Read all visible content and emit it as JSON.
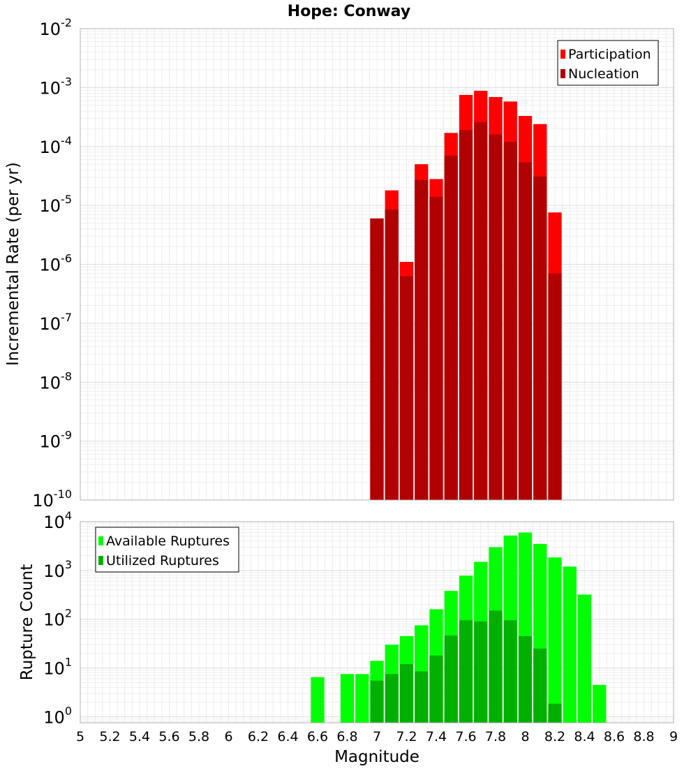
{
  "chart_data": [
    {
      "type": "bar",
      "title": "Hope: Conway",
      "ylabel": "Incremental Rate (per yr)",
      "xlabel": "",
      "x_range": [
        5,
        9
      ],
      "y_scale": "log",
      "ylim": [
        1e-10,
        0.01
      ],
      "grid": true,
      "legend_position": "top-right",
      "y_tick_exponents": [
        -2,
        -3,
        -4,
        -5,
        -6,
        -7,
        -8,
        -9,
        -10
      ],
      "x": [
        7.0,
        7.1,
        7.2,
        7.3,
        7.4,
        7.5,
        7.6,
        7.7,
        7.8,
        7.9,
        8.0,
        8.1,
        8.2
      ],
      "series": [
        {
          "name": "Participation",
          "color": "#ff0000",
          "values": [
            6e-06,
            1.8e-05,
            1.1e-06,
            5e-05,
            2.8e-05,
            0.00017,
            0.00075,
            0.00088,
            0.00069,
            0.00058,
            0.00033,
            0.00024,
            7.6e-06
          ]
        },
        {
          "name": "Nucleation",
          "color": "#b00000",
          "values": [
            6e-06,
            8.5e-06,
            6.3e-07,
            2.7e-05,
            1.4e-05,
            7e-05,
            0.00019,
            0.00026,
            0.00016,
            0.00012,
            5.4e-05,
            3.1e-05,
            7e-07
          ]
        }
      ]
    },
    {
      "type": "bar",
      "title": "",
      "ylabel": "Rupture Count",
      "xlabel": "Magnitude",
      "x_range": [
        5,
        9
      ],
      "y_scale": "log",
      "ylim": [
        0.75,
        10000.0
      ],
      "grid": true,
      "legend_position": "top-left",
      "y_tick_exponents": [
        4,
        3,
        2,
        1,
        0
      ],
      "x_ticks": [
        "5",
        "5.2",
        "5.4",
        "5.6",
        "5.8",
        "6",
        "6.2",
        "6.4",
        "6.6",
        "6.8",
        "7",
        "7.2",
        "7.4",
        "7.6",
        "7.8",
        "8",
        "8.2",
        "8.4",
        "8.6",
        "8.8",
        "9"
      ],
      "x": [
        6.6,
        6.7,
        6.8,
        6.9,
        7.0,
        7.1,
        7.2,
        7.3,
        7.4,
        7.5,
        7.6,
        7.7,
        7.8,
        7.9,
        8.0,
        8.1,
        8.2,
        8.3,
        8.4,
        8.5
      ],
      "series": [
        {
          "name": "Available Ruptures",
          "color": "#00ff00",
          "values": [
            6.5,
            null,
            7.5,
            7.5,
            14,
            30,
            45,
            75,
            160,
            380,
            780,
            1500,
            3000,
            5200,
            6000,
            3500,
            1850,
            1200,
            320,
            4.5
          ]
        },
        {
          "name": "Utilized Ruptures",
          "color": "#00b000",
          "values": [
            null,
            null,
            null,
            null,
            5.5,
            7.5,
            12,
            8.5,
            18,
            46,
            95,
            90,
            150,
            95,
            45,
            25,
            1.85,
            null,
            null,
            null
          ]
        }
      ]
    }
  ]
}
